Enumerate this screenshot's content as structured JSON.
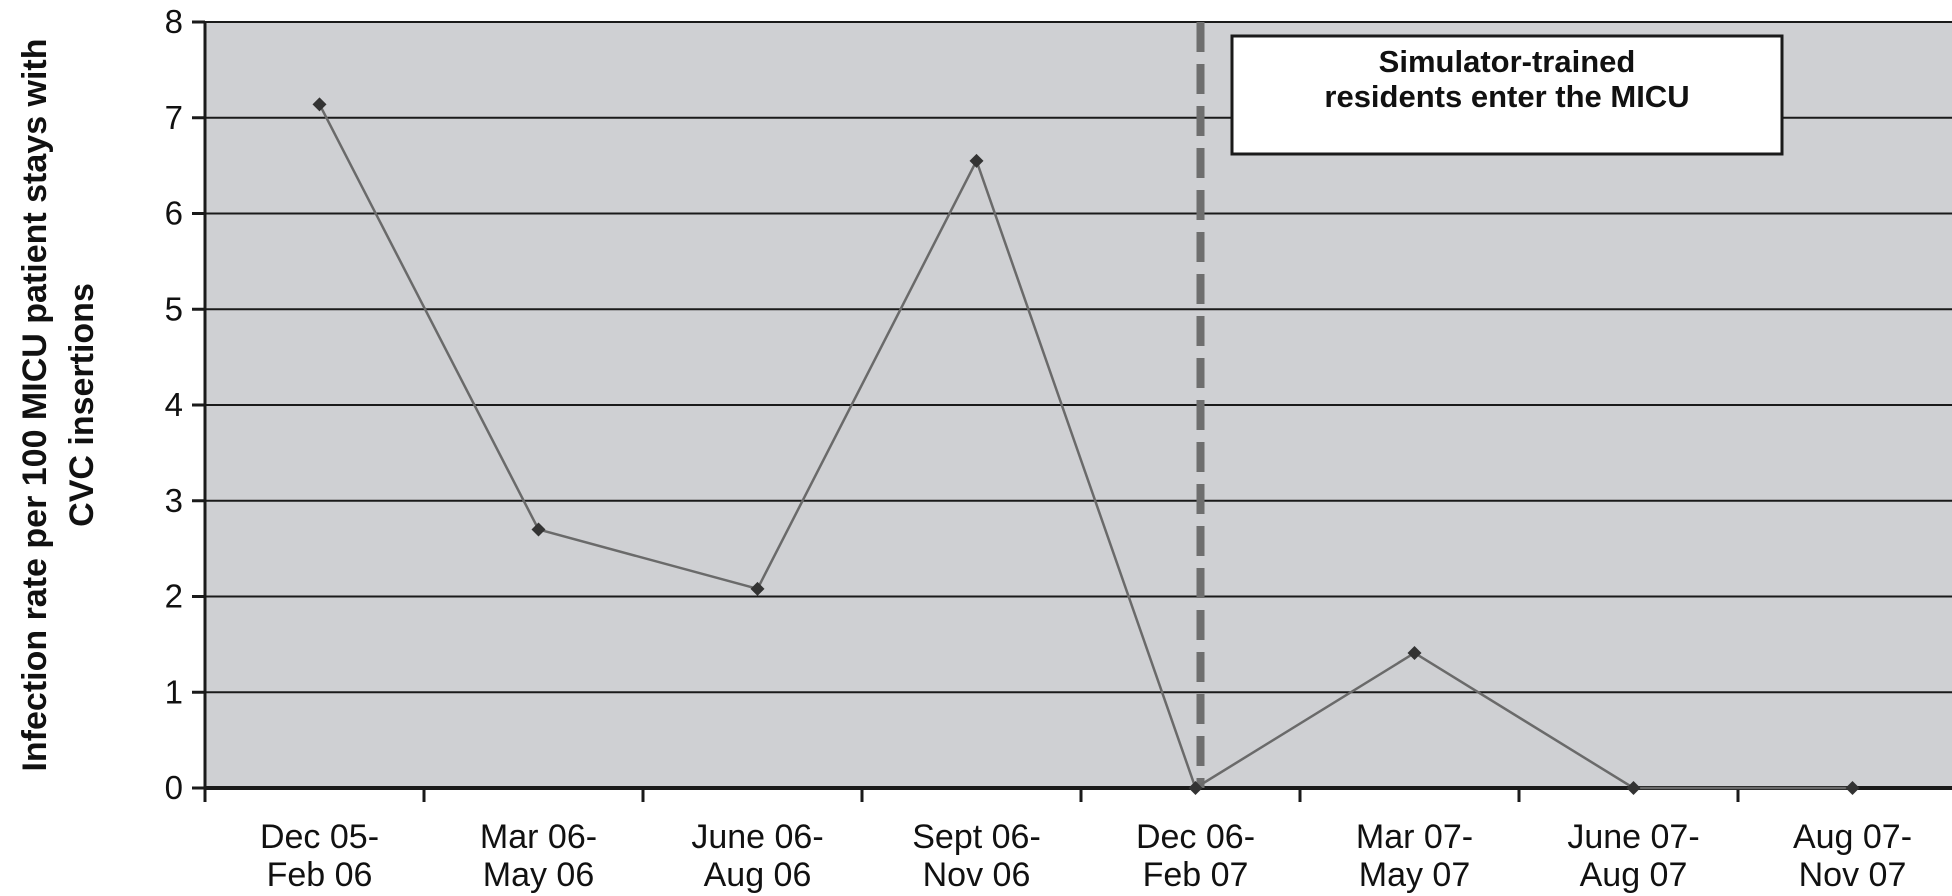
{
  "chart_data": {
    "type": "line",
    "title": "",
    "xlabel": "",
    "ylabel_lines": [
      "Infection rate per 100 MICU patient stays with",
      "CVC insertions"
    ],
    "ylim": [
      0,
      8
    ],
    "yticks": [
      "0",
      "1",
      "2",
      "3",
      "4",
      "5",
      "6",
      "7",
      "8"
    ],
    "grid": true,
    "categories": [
      [
        "Dec 05-",
        "Feb 06"
      ],
      [
        "Mar 06-",
        "May 06"
      ],
      [
        "June 06-",
        "Aug 06"
      ],
      [
        "Sept 06-",
        "Nov 06"
      ],
      [
        "Dec 06-",
        "Feb 07"
      ],
      [
        "Mar 07-",
        "May 07"
      ],
      [
        "June 07-",
        "Aug 07"
      ],
      [
        "Aug 07-",
        "Nov 07"
      ]
    ],
    "values": [
      7.14,
      2.7,
      2.08,
      6.55,
      0,
      1.41,
      0,
      0
    ],
    "annotation": {
      "lines": [
        "Simulator-trained",
        "residents enter the MICU"
      ],
      "at_category_index": 4
    },
    "colors": {
      "plot_bg": "#cfd0d3",
      "line": "#6a6a6a",
      "marker": "#333333",
      "grid": "#1a1a1a",
      "dashed": "#6e6e6e"
    }
  }
}
